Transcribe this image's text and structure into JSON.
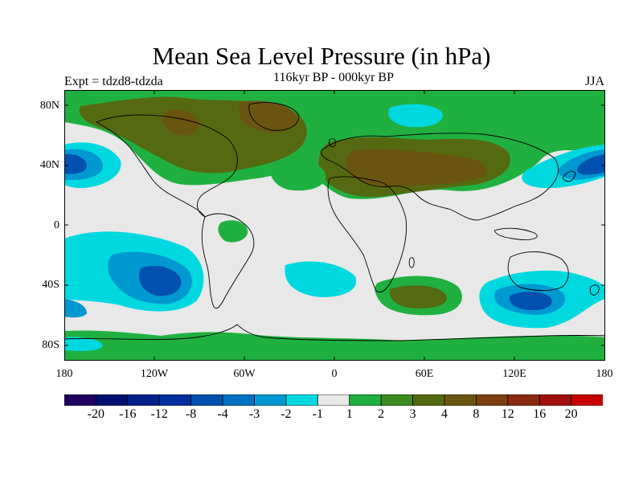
{
  "title": "Mean Sea Level Pressure (in hPa)",
  "expt_label": "Expt = tdzd8-tdzda",
  "subtitle": "116kyr BP - 000kyr BP",
  "season": "JJA",
  "map": {
    "lat_ticks": [
      "80N",
      "40N",
      "0",
      "40S",
      "80S"
    ],
    "lon_ticks": [
      "180",
      "120W",
      "60W",
      "0",
      "60E",
      "120E",
      "180"
    ]
  },
  "colorbar": {
    "colors": [
      "#200060",
      "#001070",
      "#00208a",
      "#0030a0",
      "#0050b0",
      "#0070c0",
      "#0098d0",
      "#00d8e0",
      "#e8e8e8",
      "#20b040",
      "#3c8a20",
      "#556a10",
      "#6a5510",
      "#7a4010",
      "#8a2a10",
      "#a01010",
      "#c80000"
    ],
    "labels": [
      "-20",
      "-16",
      "-12",
      "-8",
      "-4",
      "-3",
      "-2",
      "-1",
      "1",
      "2",
      "3",
      "4",
      "8",
      "12",
      "16",
      "20"
    ]
  }
}
